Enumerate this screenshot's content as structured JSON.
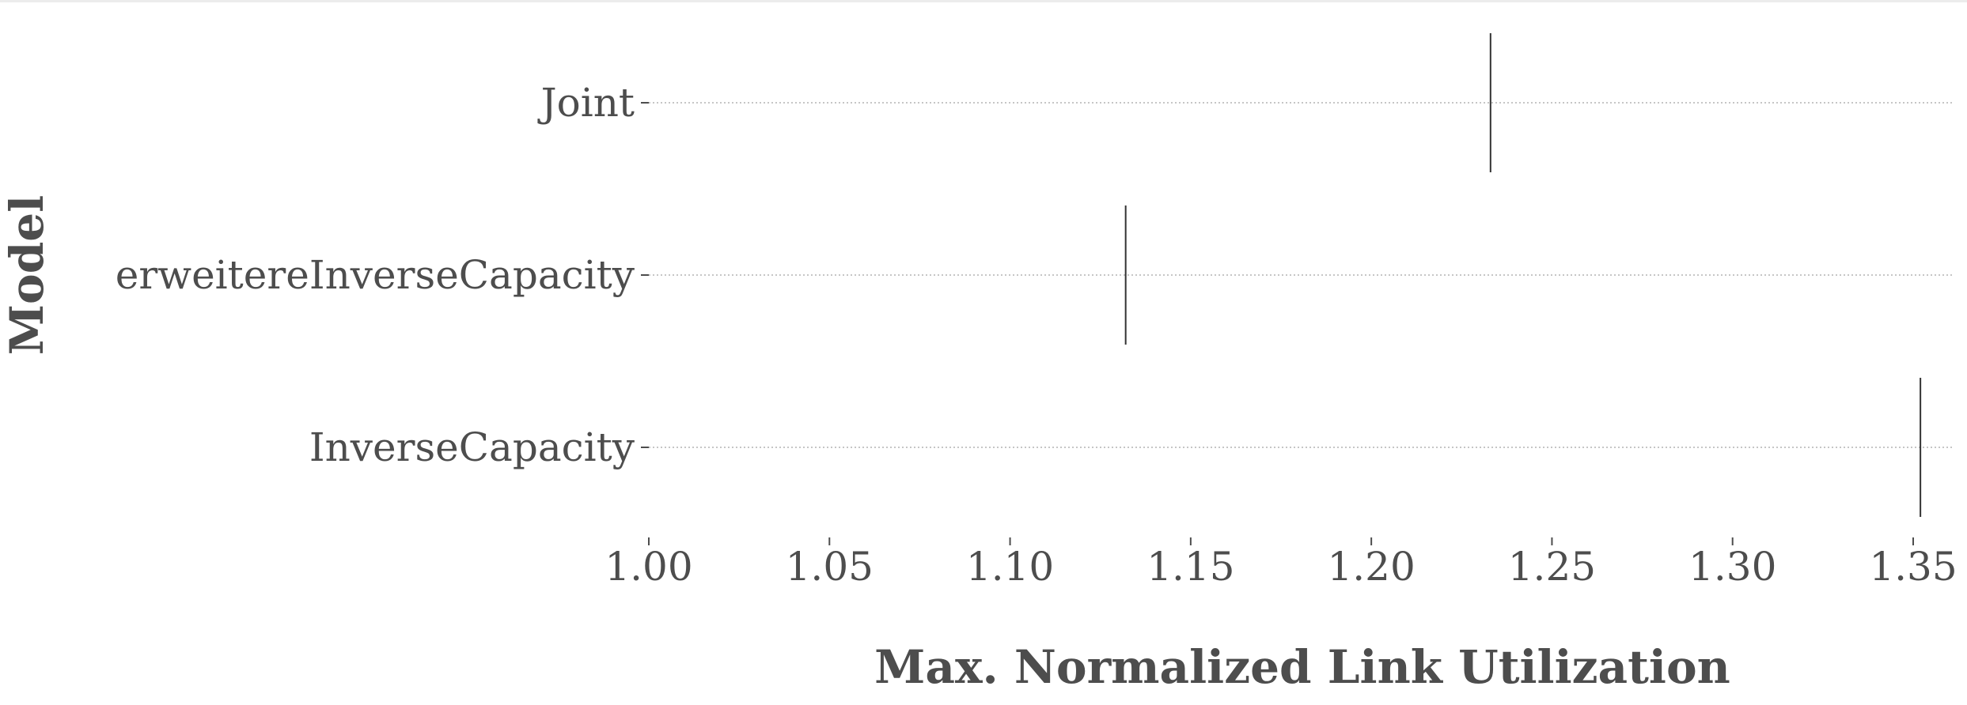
{
  "chart_data": {
    "type": "strip",
    "xlabel": "Max. Normalized Link Utilization",
    "ylabel": "Model",
    "categories": [
      "Joint",
      "erweitereInverseCapacity",
      "InverseCapacity"
    ],
    "values": [
      1.233,
      1.132,
      1.352
    ],
    "x_ticks": [
      "1.00",
      "1.05",
      "1.10",
      "1.15",
      "1.20",
      "1.25",
      "1.30",
      "1.35"
    ],
    "xlim": [
      1.0,
      1.36
    ],
    "grid": "horizontal dotted",
    "colors": {
      "text": "#4d4d4d",
      "marker": "#333333",
      "grid": "#b3b3b3"
    }
  }
}
